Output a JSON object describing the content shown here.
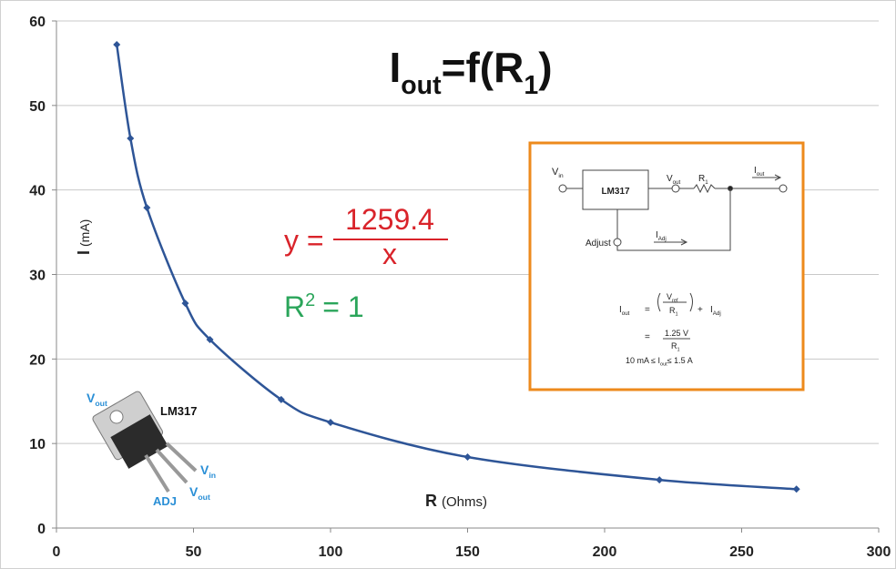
{
  "chart_data": {
    "type": "line",
    "title": [
      "I",
      "out",
      "=f(R",
      "1",
      ")"
    ],
    "x_label": [
      "R",
      "(Ohms)"
    ],
    "y_label": [
      "I",
      "(mA)"
    ],
    "x": [
      22,
      27,
      33,
      47,
      56,
      82,
      100,
      150,
      220,
      270
    ],
    "series": [
      {
        "color": "#2e5597",
        "values": [
          57.2,
          46.1,
          37.9,
          26.6,
          22.3,
          15.2,
          12.5,
          8.4,
          5.7,
          4.6
        ]
      }
    ],
    "xlim": [
      0,
      300
    ],
    "ylim": [
      0,
      60
    ],
    "xticks": [
      0,
      50,
      100,
      150,
      200,
      250,
      300
    ],
    "yticks": [
      0,
      10,
      20,
      30,
      40,
      50,
      60
    ],
    "grid": true,
    "annotations": {
      "equation": {
        "lhs": "y =",
        "numerator": "1259.4",
        "denominator": "x",
        "color": "#d9232a"
      },
      "r_squared": {
        "base": "R",
        "exponent": "2",
        "rhs": "= 1",
        "color": "#2aa55a"
      }
    }
  },
  "inset": {
    "vin": [
      "V",
      "in"
    ],
    "chip": "LM317",
    "vout": [
      "V",
      "out"
    ],
    "r1": [
      "R",
      "1"
    ],
    "iout": [
      "I",
      "out"
    ],
    "adjust": "Adjust",
    "iadj": [
      "I",
      "Adj"
    ],
    "formula": {
      "lhs": [
        "I",
        "out"
      ],
      "eq1": "=",
      "frac1_num": [
        "V",
        "ref"
      ],
      "frac1_den": [
        "R",
        "1"
      ],
      "plus": "+",
      "term": [
        "I",
        "Adj"
      ],
      "eq2": "=",
      "frac2_num": "1.25 V",
      "frac2_den": [
        "R",
        "1"
      ],
      "range": [
        "10 mA ≤ I",
        "out",
        "≤ 1.5 A"
      ]
    }
  },
  "chip_photo": {
    "vout_top": [
      "V",
      "out"
    ],
    "name": "LM317",
    "vin": [
      "V",
      "in"
    ],
    "adj": "ADJ",
    "vout": [
      "V",
      "out"
    ]
  }
}
